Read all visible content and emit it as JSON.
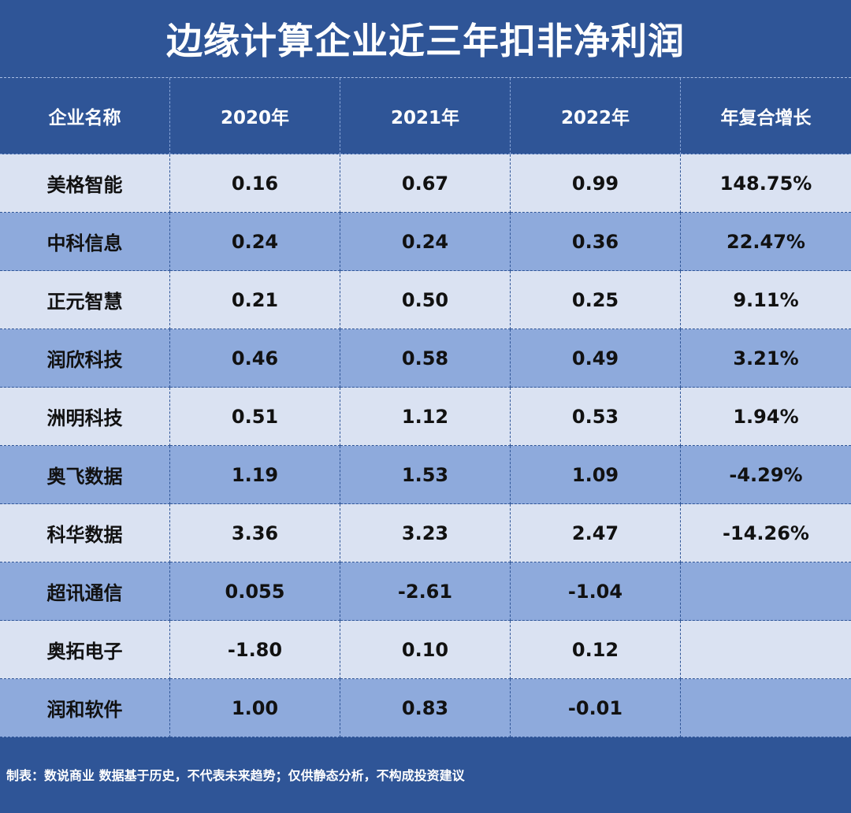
{
  "title": "边缘计算企业近三年扣非净利润",
  "headers": [
    "企业名称",
    "2020年",
    "2021年",
    "2022年",
    "年复合增长"
  ],
  "rows": [
    [
      "美格智能",
      "0.16",
      "0.67",
      "0.99",
      "148.75%"
    ],
    [
      "中科信息",
      "0.24",
      "0.24",
      "0.36",
      "22.47%"
    ],
    [
      "正元智慧",
      "0.21",
      "0.50",
      "0.25",
      "9.11%"
    ],
    [
      "润欣科技",
      "0.46",
      "0.58",
      "0.49",
      "3.21%"
    ],
    [
      "洲明科技",
      "0.51",
      "1.12",
      "0.53",
      "1.94%"
    ],
    [
      "奥飞数据",
      "1.19",
      "1.53",
      "1.09",
      "-4.29%"
    ],
    [
      "科华数据",
      "3.36",
      "3.23",
      "2.47",
      "-14.26%"
    ],
    [
      "超讯通信",
      "0.055",
      "-2.61",
      "-1.04",
      ""
    ],
    [
      "奥拓电子",
      "-1.80",
      "0.10",
      "0.12",
      ""
    ],
    [
      "润和软件",
      "1.00",
      "0.83",
      "-0.01",
      ""
    ]
  ],
  "footer": "制表：数说商业 数据基于历史，不代表未来趋势；仅供静态分析，不构成投资建议",
  "colors": {
    "background": "#2f5597",
    "row_light": "#dae2f2",
    "row_dark": "#8eaadc",
    "header_text": "#ffffff"
  }
}
